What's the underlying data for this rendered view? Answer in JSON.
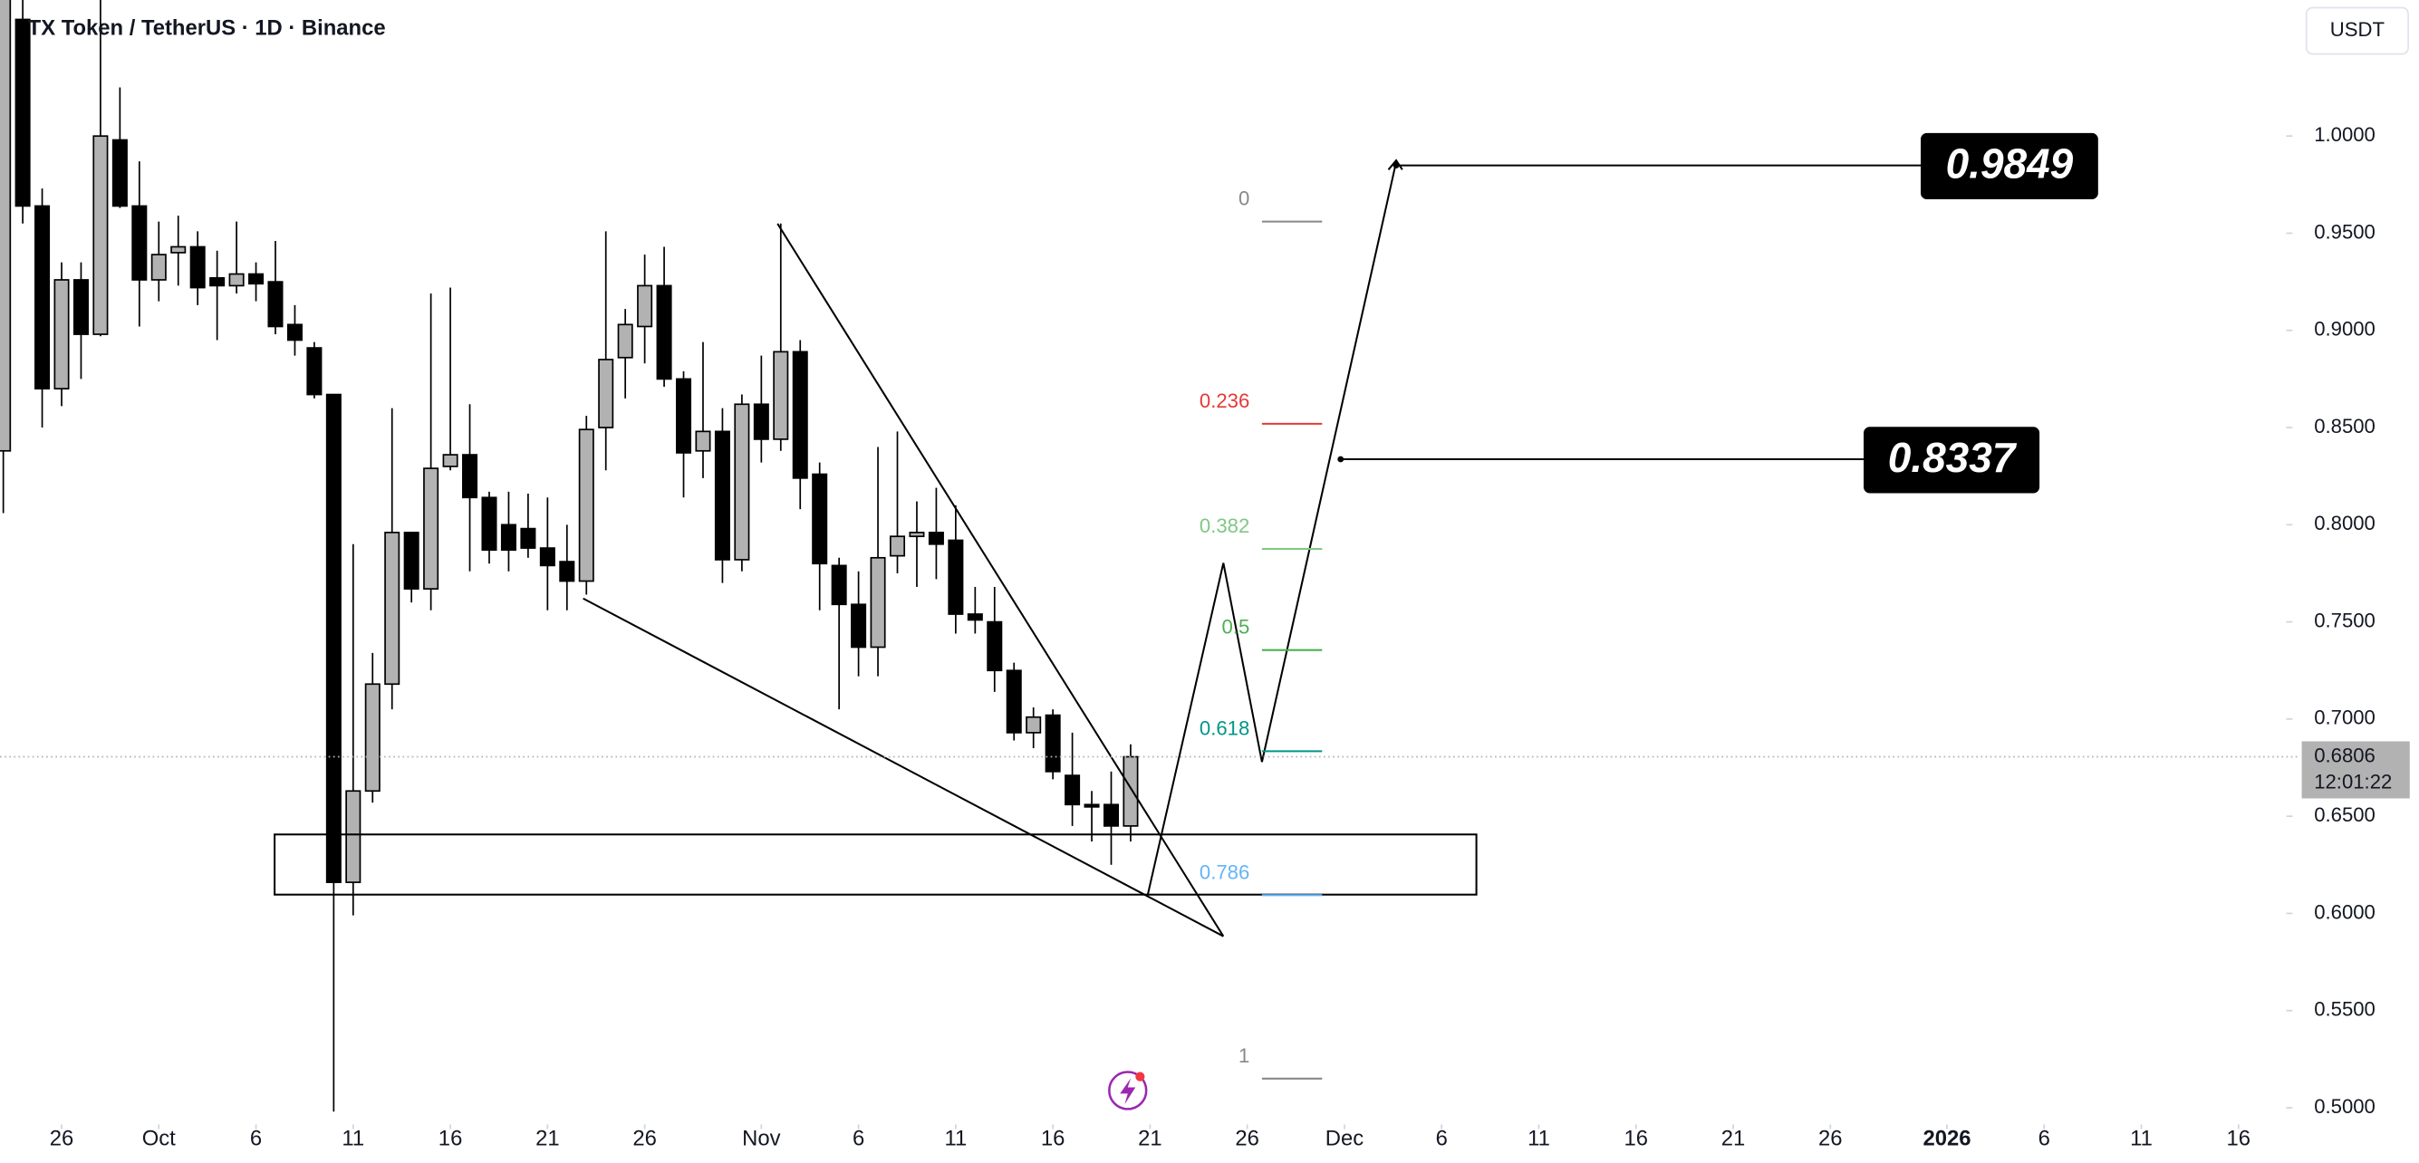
{
  "chart_data": {
    "type": "candlestick",
    "title": "TX Token / TetherUS · 1D · Binance",
    "currency_button": "USDT",
    "up_color": "#b2b2b2",
    "down_color": "#000000",
    "open": [
      0.838,
      1.06,
      0.964,
      0.87,
      0.926,
      0.898,
      0.998,
      0.964,
      0.926,
      0.94,
      0.943,
      0.927,
      0.923,
      0.929,
      0.925,
      0.903,
      0.891,
      0.867,
      0.616,
      0.663,
      0.718,
      0.796,
      0.767,
      0.83,
      0.836,
      0.814,
      0.8,
      0.798,
      0.788,
      0.781,
      0.771,
      0.85,
      0.886,
      0.902,
      0.923,
      0.875,
      0.838,
      0.848,
      0.782,
      0.862,
      0.844,
      0.889,
      0.826,
      0.779,
      0.759,
      0.737,
      0.784,
      0.794,
      0.796,
      0.792,
      0.754,
      0.75,
      0.725,
      0.693,
      0.702,
      0.671,
      0.656,
      0.656,
      0.645
    ],
    "high": [
      1.12,
      1.1,
      0.973,
      0.935,
      0.935,
      1.07,
      1.025,
      0.987,
      0.956,
      0.959,
      0.951,
      0.941,
      0.956,
      0.935,
      0.946,
      0.913,
      0.894,
      0.867,
      0.79,
      0.734,
      0.86,
      0.796,
      0.919,
      0.922,
      0.862,
      0.817,
      0.817,
      0.816,
      0.814,
      0.8,
      0.856,
      0.951,
      0.911,
      0.939,
      0.943,
      0.879,
      0.894,
      0.86,
      0.867,
      0.887,
      0.955,
      0.895,
      0.832,
      0.783,
      0.776,
      0.84,
      0.848,
      0.812,
      0.819,
      0.81,
      0.768,
      0.768,
      0.729,
      0.706,
      0.705,
      0.693,
      0.663,
      0.673,
      0.687
    ],
    "low": [
      0.806,
      0.955,
      0.85,
      0.861,
      0.875,
      0.897,
      0.963,
      0.902,
      0.915,
      0.923,
      0.913,
      0.895,
      0.919,
      0.915,
      0.898,
      0.887,
      0.865,
      0.498,
      0.599,
      0.657,
      0.705,
      0.76,
      0.756,
      0.828,
      0.776,
      0.78,
      0.776,
      0.783,
      0.756,
      0.756,
      0.764,
      0.828,
      0.865,
      0.883,
      0.871,
      0.814,
      0.824,
      0.77,
      0.776,
      0.832,
      0.838,
      0.808,
      0.756,
      0.705,
      0.722,
      0.722,
      0.775,
      0.768,
      0.772,
      0.744,
      0.744,
      0.714,
      0.689,
      0.685,
      0.669,
      0.645,
      0.637,
      0.625,
      0.637
    ],
    "close": [
      1.08,
      0.964,
      0.87,
      0.926,
      0.898,
      1.0,
      0.964,
      0.926,
      0.939,
      0.943,
      0.922,
      0.923,
      0.929,
      0.924,
      0.902,
      0.895,
      0.867,
      0.616,
      0.663,
      0.718,
      0.796,
      0.767,
      0.829,
      0.836,
      0.814,
      0.787,
      0.787,
      0.788,
      0.779,
      0.771,
      0.849,
      0.885,
      0.903,
      0.923,
      0.875,
      0.837,
      0.848,
      0.782,
      0.862,
      0.844,
      0.889,
      0.824,
      0.78,
      0.759,
      0.737,
      0.783,
      0.794,
      0.796,
      0.79,
      0.754,
      0.751,
      0.725,
      0.693,
      0.701,
      0.673,
      0.656,
      0.655,
      0.645,
      0.6806
    ],
    "countdown": "12:01:22",
    "xlim": [
      -0.17,
      117.3
    ],
    "xticks": [
      {
        "value": 3,
        "label": "26"
      },
      {
        "value": 8,
        "label": "Oct"
      },
      {
        "value": 13,
        "label": "6"
      },
      {
        "value": 18,
        "label": "11"
      },
      {
        "value": 23,
        "label": "16"
      },
      {
        "value": 28,
        "label": "21"
      },
      {
        "value": 33,
        "label": "26"
      },
      {
        "value": 39,
        "label": "Nov"
      },
      {
        "value": 44,
        "label": "6"
      },
      {
        "value": 49,
        "label": "11"
      },
      {
        "value": 54,
        "label": "16"
      },
      {
        "value": 59,
        "label": "21"
      },
      {
        "value": 64,
        "label": "26"
      },
      {
        "value": 69,
        "label": "Dec"
      },
      {
        "value": 74,
        "label": "6"
      },
      {
        "value": 79,
        "label": "11"
      },
      {
        "value": 84,
        "label": "16"
      },
      {
        "value": 89,
        "label": "21"
      },
      {
        "value": 94,
        "label": "26"
      },
      {
        "value": 100,
        "label": "2026"
      },
      {
        "value": 105,
        "label": "6"
      },
      {
        "value": 110,
        "label": "11"
      },
      {
        "value": 115,
        "label": "16"
      }
    ],
    "ylim": [
      0.493,
      1.07
    ],
    "yticks": [
      {
        "value": 1,
        "label": "1.0000"
      },
      {
        "value": 0.95,
        "label": "0.9500"
      },
      {
        "value": 0.9,
        "label": "0.9000"
      },
      {
        "value": 0.85,
        "label": "0.8500"
      },
      {
        "value": 0.8,
        "label": "0.8000"
      },
      {
        "value": 0.75,
        "label": "0.7500"
      },
      {
        "value": 0.7,
        "label": "0.7000"
      },
      {
        "value": 0.65,
        "label": "0.6500"
      },
      {
        "value": 0.6,
        "label": "0.6000"
      },
      {
        "value": 0.55,
        "label": "0.5500"
      },
      {
        "value": 0.5,
        "label": "0.5000"
      }
    ],
    "fibonacci": {
      "start_price": 0.956,
      "end_price": 0.515,
      "levels": [
        0,
        0.236,
        0.382,
        0.5,
        0.618,
        0.786,
        1
      ],
      "colors": [
        "#888888",
        "#e53935",
        "#81c784",
        "#4caf50",
        "#009688",
        "#64b5f6",
        "#888888"
      ]
    },
    "target_labels": [
      0.9849,
      0.8337
    ]
  }
}
